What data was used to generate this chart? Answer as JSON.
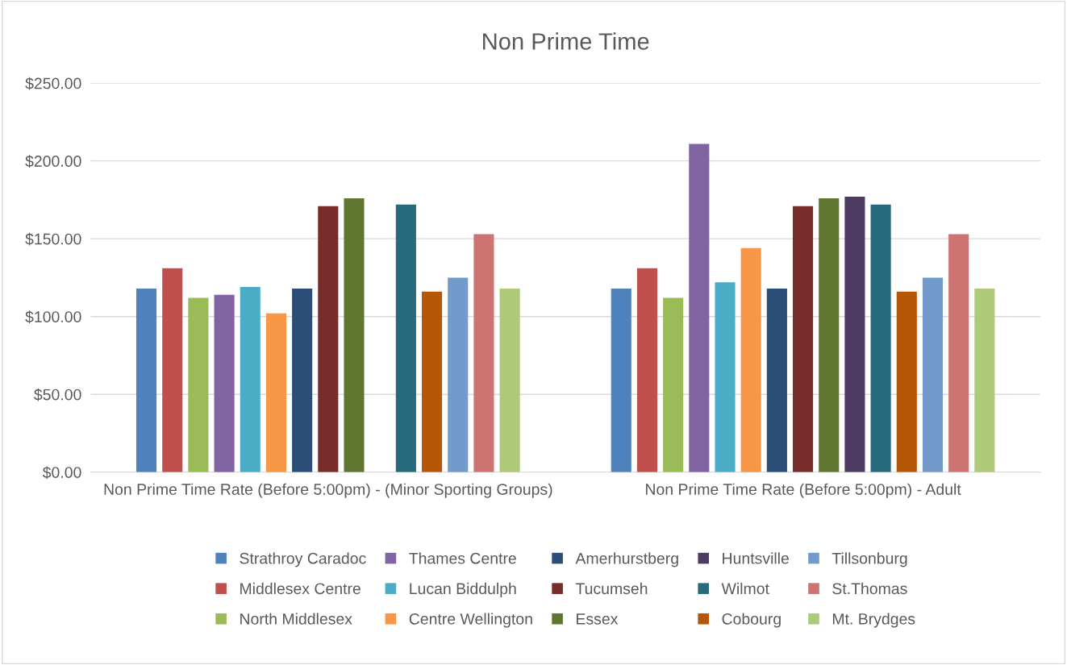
{
  "chart_data": {
    "type": "bar",
    "title": "Non Prime Time",
    "categories": [
      "Non Prime Time Rate (Before 5:00pm) - (Minor Sporting Groups)",
      "Non Prime Time Rate (Before 5:00pm) - Adult"
    ],
    "series": [
      {
        "name": "Strathroy Caradoc",
        "color": "#4f81bd",
        "values": [
          118,
          118
        ]
      },
      {
        "name": "Middlesex Centre",
        "color": "#c0504d",
        "values": [
          131,
          131
        ]
      },
      {
        "name": "North Middlesex",
        "color": "#9bbb59",
        "values": [
          112,
          112
        ]
      },
      {
        "name": "Thames Centre",
        "color": "#8064a2",
        "values": [
          114,
          211
        ]
      },
      {
        "name": "Lucan Biddulph",
        "color": "#4bacc6",
        "values": [
          119,
          122
        ]
      },
      {
        "name": "Centre Wellington",
        "color": "#f79646",
        "values": [
          102,
          144
        ]
      },
      {
        "name": "Amerhurstberg",
        "color": "#2c4d75",
        "values": [
          118,
          118
        ]
      },
      {
        "name": "Tucumseh",
        "color": "#772c2a",
        "values": [
          171,
          171
        ]
      },
      {
        "name": "Essex",
        "color": "#5f7530",
        "values": [
          176,
          176
        ]
      },
      {
        "name": "Huntsville",
        "color": "#4d3b62",
        "values": [
          null,
          177
        ]
      },
      {
        "name": "Wilmot",
        "color": "#276a7c",
        "values": [
          172,
          172
        ]
      },
      {
        "name": "Cobourg",
        "color": "#b65708",
        "values": [
          116,
          116
        ]
      },
      {
        "name": "Tillsonburg",
        "color": "#729aca",
        "values": [
          125,
          125
        ]
      },
      {
        "name": "St.Thomas",
        "color": "#cd7371",
        "values": [
          153,
          153
        ]
      },
      {
        "name": "Mt. Brydges",
        "color": "#afc97a",
        "values": [
          118,
          118
        ]
      }
    ],
    "ylim": [
      0,
      250
    ],
    "yticks": [
      {
        "value": 0,
        "label": "$0.00"
      },
      {
        "value": 50,
        "label": "$50.00"
      },
      {
        "value": 100,
        "label": "$100.00"
      },
      {
        "value": 150,
        "label": "$150.00"
      },
      {
        "value": 200,
        "label": "$200.00"
      },
      {
        "value": 250,
        "label": "$250.00"
      }
    ],
    "grid": "y",
    "legend": "bottom"
  }
}
